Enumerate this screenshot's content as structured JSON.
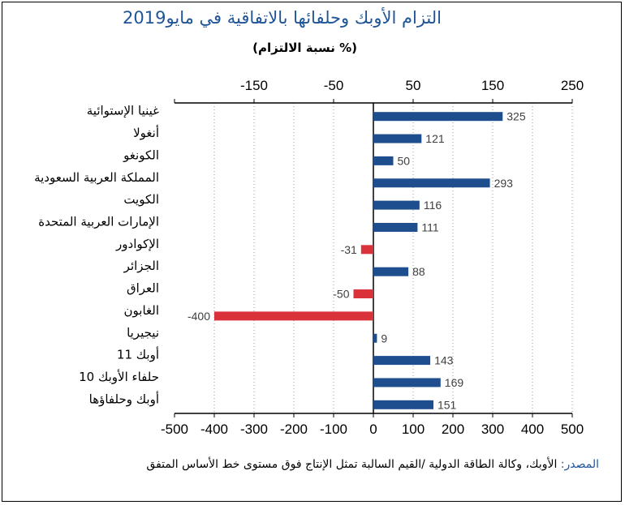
{
  "chart_title": "التزام الأوبك وحلفائها بالاتفاقية في مايو2019",
  "chart_subtitle": "(% نسبة الالتزام)",
  "source": {
    "label": "المصدر:",
    "text": "الأوبك، وكالة الطاقة الدولية /القيم السالبة تمثل الإنتاج فوق مستوى خط الأساس المتفق"
  },
  "colors": {
    "positive": "#1f4e8e",
    "negative": "#d9323b",
    "axis": "#000000",
    "grid": "#999999",
    "label": "#404040"
  },
  "chart_data": {
    "type": "bar",
    "orientation": "horizontal",
    "title": "التزام الأوبك وحلفائها بالاتفاقية في مايو2019",
    "xlabel": "(% نسبة الالتزام)",
    "ylabel": "",
    "categories": [
      "غينيا الإستوائية",
      "أنغولا",
      "الكونغو",
      "المملكة العربية السعودية",
      "الكويت",
      "الإمارات العربية المتحدة",
      "الإكوادور",
      "الجزائر",
      "العراق",
      "الغابون",
      "نيجيريا",
      "أوبك 11",
      "حلفاء الأوبك 10",
      "أوبك وحلفاؤها"
    ],
    "values": [
      325,
      121,
      50,
      293,
      116,
      111,
      -31,
      88,
      -50,
      -400,
      9,
      143,
      169,
      151
    ],
    "data_labels": [
      "325",
      "121",
      "50",
      "293",
      "116",
      "111",
      "-31",
      "88",
      "-50",
      "-400",
      "9",
      "143",
      "169",
      "151"
    ],
    "xlim": [
      -500,
      500
    ],
    "bottom_ticks": [
      "-500",
      "-400",
      "-300",
      "-200",
      "-100",
      "0",
      "100",
      "200",
      "300",
      "400",
      "500"
    ],
    "top_ticks": [
      "-150",
      "-50",
      "50",
      "150",
      "250"
    ],
    "grid": "vertical dotted"
  }
}
